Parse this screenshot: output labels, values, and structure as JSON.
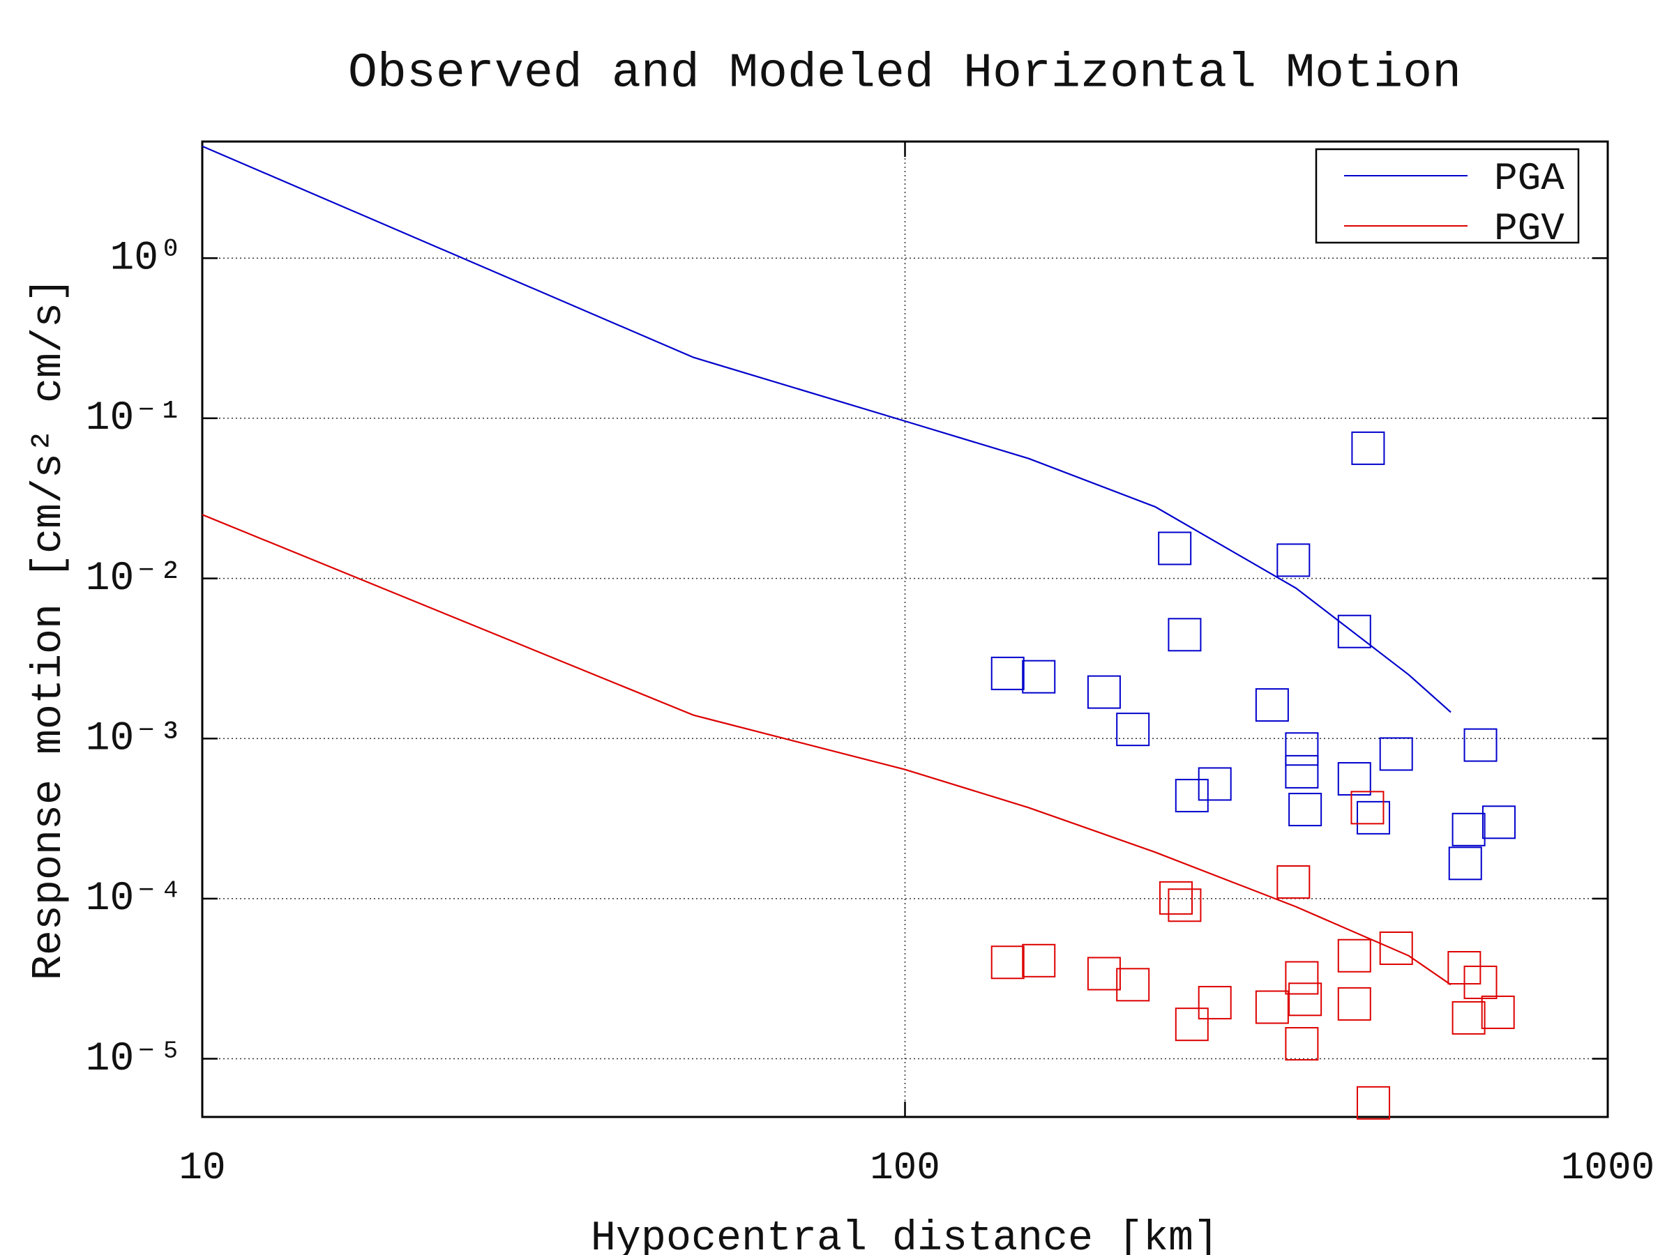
{
  "chart_data": {
    "type": "line",
    "title": "Observed and Modeled Horizontal Motion",
    "x_label": "Hypocentral distance [km]",
    "y_label": "Response motion [cm/s²  cm/s]",
    "xlog": true,
    "ylog": true,
    "grid": true,
    "legend": "upper right",
    "xlim": [
      10,
      1000
    ],
    "xticks": [
      10,
      100,
      1000
    ],
    "ylim": [
      4.33e-06,
      5.35
    ],
    "yticks": [
      {
        "value": 1e-05,
        "label": "10⁻⁵"
      },
      {
        "value": 0.0001,
        "label": "10⁻⁴"
      },
      {
        "value": 0.001,
        "label": "10⁻³"
      },
      {
        "value": 0.01,
        "label": "10⁻²"
      },
      {
        "value": 0.1,
        "label": "10⁻¹"
      },
      {
        "value": 1,
        "label": "10⁰"
      }
    ],
    "series": [
      {
        "name": "PGA",
        "color": "#0000cc",
        "x": [
          10,
          50,
          100,
          150,
          227,
          360,
          521,
          598
        ],
        "values": [
          5.0,
          0.24,
          0.096,
          0.056,
          0.028,
          0.0087,
          0.0025,
          0.00146
        ]
      },
      {
        "name": "PGV",
        "color": "#dd0000",
        "x": [
          10,
          50,
          100,
          150,
          227,
          360,
          521,
          598
        ],
        "values": [
          0.025,
          0.0014,
          0.00064,
          0.00037,
          0.000195,
          8.9e-05,
          4.4e-05,
          2.9e-05
        ]
      }
    ],
    "observed": [
      {
        "color": "#0000cc",
        "x": [
          456,
          242,
          357,
          436,
          250,
          140,
          155,
          192,
          333,
          211,
          659,
          367,
          500,
          367,
          436,
          276,
          256,
          371,
          464,
          700,
          634,
          627
        ],
        "values": [
          0.065,
          0.0154,
          0.013,
          0.00466,
          0.00445,
          0.00255,
          0.00243,
          0.00195,
          0.00162,
          0.00114,
          0.00091,
          0.00086,
          0.0008,
          0.00062,
          0.00056,
          0.00052,
          0.00044,
          0.00036,
          0.00032,
          0.0003,
          0.00027,
          0.000166
        ]
      },
      {
        "color": "#dd0000",
        "x": [
          357,
          243,
          250,
          455,
          500,
          140,
          155,
          436,
          625,
          192,
          367,
          659,
          211,
          371,
          276,
          436,
          333,
          698,
          634,
          256,
          367,
          464
        ],
        "values": [
          0.000127,
          0.000101,
          9.1e-05,
          0.00037,
          4.9e-05,
          4e-05,
          4.1e-05,
          4.4e-05,
          3.7e-05,
          3.4e-05,
          3.2e-05,
          3e-05,
          2.9e-05,
          2.35e-05,
          2.24e-05,
          2.2e-05,
          2.1e-05,
          1.95e-05,
          1.8e-05,
          1.64e-05,
          1.24e-05,
          5.3e-06
        ]
      }
    ]
  }
}
